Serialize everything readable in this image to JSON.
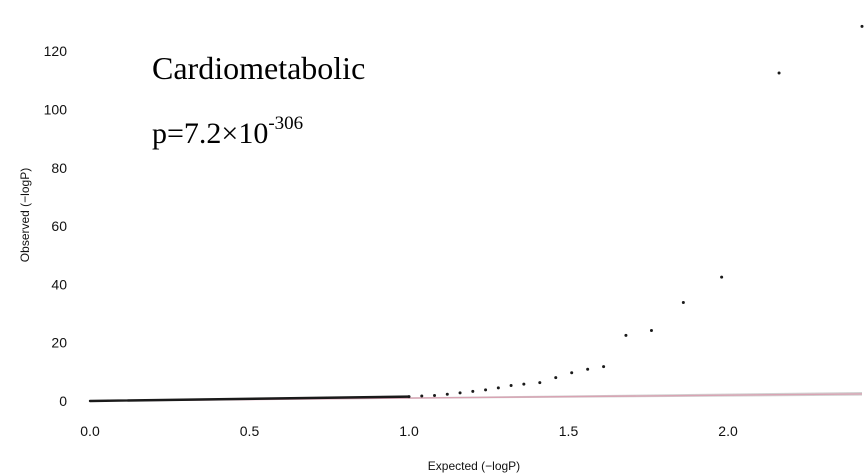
{
  "chart_data": {
    "type": "scatter",
    "title": "",
    "xlabel": "Expected (−logP)",
    "ylabel": "Observed (−logP)",
    "xlim": [
      0.0,
      2.42
    ],
    "ylim": [
      0,
      130
    ],
    "x_ticks": [
      "0.0",
      "0.5",
      "1.0",
      "1.5",
      "2.0"
    ],
    "y_ticks": [
      "0",
      "20",
      "40",
      "60",
      "80",
      "100",
      "120"
    ],
    "grid": false,
    "legend": "none",
    "annotation": {
      "label": "Cardiometabolic",
      "p_prefix": "p=7.2×10",
      "p_exponent": "-306"
    },
    "colors": {
      "points": "#1a1a1a",
      "reference_line": "#d9a3b3",
      "confidence_band": "#999999"
    },
    "series": [
      {
        "points": [
          [
            1.0,
            1.5
          ],
          [
            1.04,
            1.7
          ],
          [
            1.08,
            1.9
          ],
          [
            1.12,
            2.3
          ],
          [
            1.16,
            2.8
          ],
          [
            1.2,
            3.3
          ],
          [
            1.24,
            3.8
          ],
          [
            1.28,
            4.5
          ],
          [
            1.32,
            5.3
          ],
          [
            1.36,
            5.8
          ],
          [
            1.41,
            6.3
          ],
          [
            1.46,
            8.0
          ],
          [
            1.51,
            9.7
          ],
          [
            1.56,
            10.9
          ],
          [
            1.61,
            11.8
          ],
          [
            1.68,
            22.5
          ],
          [
            1.76,
            24.2
          ],
          [
            1.86,
            33.8
          ],
          [
            1.98,
            42.5
          ],
          [
            2.16,
            112.5
          ],
          [
            2.42,
            128.5
          ]
        ]
      }
    ]
  }
}
